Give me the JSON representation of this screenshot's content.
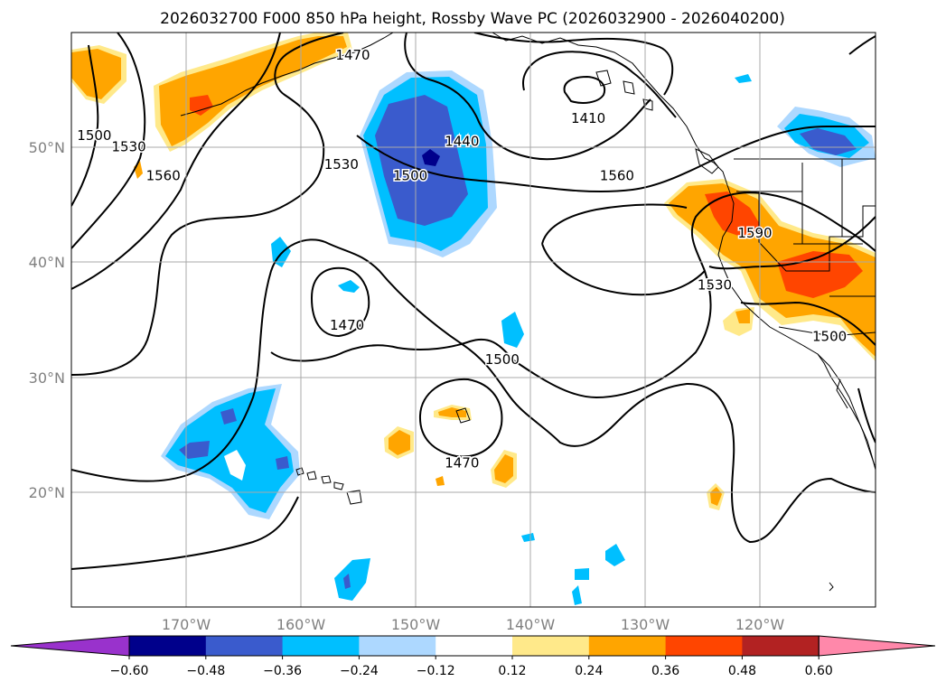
{
  "title": "2026032700 F000 850 hPa height, Rossby Wave PC (2026032900 - 2026040200)",
  "chart_data": {
    "type": "map-contour",
    "variable": "850 hPa height (contours) and Rossby Wave PC (shading)",
    "init_time": "2026032700",
    "forecast_hour": "F000",
    "period": "2026032900 - 2026040200",
    "lon_range": [
      -180,
      -110
    ],
    "lat_range": [
      10,
      60
    ],
    "lon_ticks": [
      "170°W",
      "160°W",
      "150°W",
      "140°W",
      "130°W",
      "120°W"
    ],
    "lat_ticks": [
      "50°N",
      "40°N",
      "30°N",
      "20°N"
    ],
    "contour_labels": [
      {
        "text": "1500",
        "lon": -178,
        "lat": 51
      },
      {
        "text": "1530",
        "lon": -175,
        "lat": 50
      },
      {
        "text": "1560",
        "lon": -172,
        "lat": 47.5
      },
      {
        "text": "1530",
        "lon": -156.5,
        "lat": 48.5
      },
      {
        "text": "1500",
        "lon": -150.5,
        "lat": 47.5
      },
      {
        "text": "1440",
        "lon": -146,
        "lat": 50.5
      },
      {
        "text": "1410",
        "lon": -135,
        "lat": 52.5
      },
      {
        "text": "1560",
        "lon": -132.5,
        "lat": 47.5
      },
      {
        "text": "1590",
        "lon": -120.5,
        "lat": 42.5
      },
      {
        "text": "1530",
        "lon": -124,
        "lat": 38
      },
      {
        "text": "1500",
        "lon": -114,
        "lat": 33.5
      },
      {
        "text": "1470",
        "lon": -156,
        "lat": 34.5
      },
      {
        "text": "1500",
        "lon": -142.5,
        "lat": 31.5
      },
      {
        "text": "1470",
        "lon": -146,
        "lat": 22.5
      },
      {
        "text": "1470",
        "lon": -155.5,
        "lat": 58
      }
    ],
    "colorbar": {
      "ticks": [
        "−0.60",
        "−0.48",
        "−0.36",
        "−0.24",
        "−0.12",
        "0.12",
        "0.24",
        "0.36",
        "0.48",
        "0.60"
      ],
      "levels": [
        -0.6,
        -0.48,
        -0.36,
        -0.24,
        -0.12,
        0.12,
        0.24,
        0.36,
        0.48,
        0.6
      ],
      "colors": [
        "#9932cc",
        "#00008b",
        "#3a5bcd",
        "#00bfff",
        "#add8ff",
        "#ffffff",
        "#ffe98a",
        "#ffa500",
        "#ff4500",
        "#b22222",
        "#ff88aa"
      ]
    }
  }
}
